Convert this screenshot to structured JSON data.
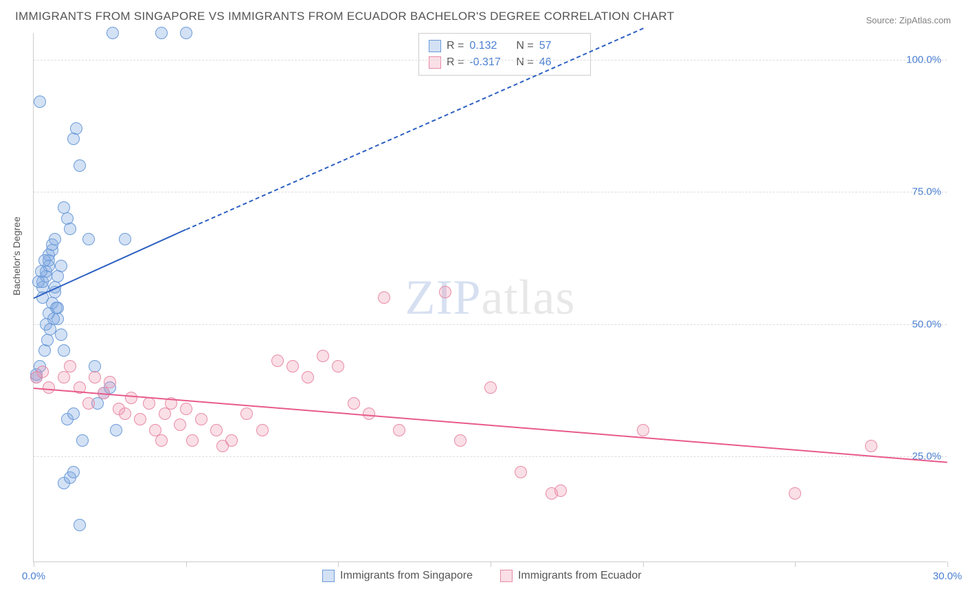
{
  "title": "IMMIGRANTS FROM SINGAPORE VS IMMIGRANTS FROM ECUADOR BACHELOR'S DEGREE CORRELATION CHART",
  "source": "Source: ZipAtlas.com",
  "watermark_zip": "ZIP",
  "watermark_atlas": "atlas",
  "ylabel": "Bachelor's Degree",
  "chart": {
    "type": "scatter",
    "xlim": [
      0,
      30
    ],
    "ylim": [
      5,
      105
    ],
    "x_tick_positions": [
      0,
      5,
      10,
      15,
      20,
      25,
      30
    ],
    "x_tick_labels": {
      "0": "0.0%",
      "30": "30.0%"
    },
    "y_tick_positions": [
      25,
      50,
      75,
      100
    ],
    "y_tick_labels": {
      "25": "25.0%",
      "50": "50.0%",
      "75": "75.0%",
      "100": "100.0%"
    },
    "plot_bg": "#ffffff",
    "grid_color": "#dddddd",
    "axis_color": "#cccccc",
    "marker_radius": 9,
    "marker_stroke_width": 1.5,
    "series": [
      {
        "name": "Immigrants from Singapore",
        "fill": "rgba(130,170,225,0.35)",
        "stroke": "#6b9bd8",
        "trend_color": "#2b5fc2",
        "R": "0.132",
        "N": "57",
        "trend": {
          "x1": 0,
          "y1": 55,
          "x2_solid": 5,
          "y2_solid": 68,
          "x2_dash": 20,
          "y2_dash": 106
        },
        "points": [
          [
            0.1,
            40
          ],
          [
            0.1,
            40.5
          ],
          [
            0.2,
            42
          ],
          [
            0.3,
            55
          ],
          [
            0.3,
            57
          ],
          [
            0.3,
            58
          ],
          [
            0.4,
            59
          ],
          [
            0.4,
            60
          ],
          [
            0.5,
            61
          ],
          [
            0.5,
            62
          ],
          [
            0.5,
            63
          ],
          [
            0.6,
            64
          ],
          [
            0.6,
            65
          ],
          [
            0.7,
            66
          ],
          [
            0.7,
            56
          ],
          [
            0.8,
            53
          ],
          [
            0.8,
            51
          ],
          [
            0.9,
            48
          ],
          [
            1.0,
            45
          ],
          [
            1.0,
            72
          ],
          [
            1.1,
            70
          ],
          [
            1.2,
            68
          ],
          [
            1.3,
            85
          ],
          [
            1.4,
            87
          ],
          [
            1.5,
            80
          ],
          [
            0.2,
            92
          ],
          [
            2.6,
            105
          ],
          [
            4.2,
            105
          ],
          [
            5.0,
            105
          ],
          [
            1.8,
            66
          ],
          [
            2.0,
            42
          ],
          [
            2.1,
            35
          ],
          [
            2.3,
            37
          ],
          [
            2.5,
            38
          ],
          [
            2.7,
            30
          ],
          [
            1.0,
            20
          ],
          [
            1.2,
            21
          ],
          [
            1.3,
            22
          ],
          [
            1.5,
            12
          ],
          [
            1.1,
            32
          ],
          [
            1.3,
            33
          ],
          [
            1.6,
            28
          ],
          [
            3.0,
            66
          ],
          [
            0.4,
            50
          ],
          [
            0.5,
            52
          ],
          [
            0.6,
            54
          ],
          [
            0.7,
            57
          ],
          [
            0.8,
            59
          ],
          [
            0.9,
            61
          ],
          [
            0.35,
            45
          ],
          [
            0.45,
            47
          ],
          [
            0.55,
            49
          ],
          [
            0.65,
            51
          ],
          [
            0.75,
            53
          ],
          [
            0.15,
            58
          ],
          [
            0.25,
            60
          ],
          [
            0.35,
            62
          ]
        ]
      },
      {
        "name": "Immigrants from Ecuador",
        "fill": "rgba(240,150,175,0.30)",
        "stroke": "#e88aa5",
        "trend_color": "#e85a8c",
        "R": "-0.317",
        "N": "46",
        "trend": {
          "x1": 0,
          "y1": 38,
          "x2_solid": 30,
          "y2_solid": 24,
          "x2_dash": 30,
          "y2_dash": 24
        },
        "points": [
          [
            0.1,
            40
          ],
          [
            0.3,
            41
          ],
          [
            0.5,
            38
          ],
          [
            1.0,
            40
          ],
          [
            1.2,
            42
          ],
          [
            1.5,
            38
          ],
          [
            1.8,
            35
          ],
          [
            2.0,
            40
          ],
          [
            2.3,
            37
          ],
          [
            2.5,
            39
          ],
          [
            2.8,
            34
          ],
          [
            3.0,
            33
          ],
          [
            3.2,
            36
          ],
          [
            3.5,
            32
          ],
          [
            3.8,
            35
          ],
          [
            4.0,
            30
          ],
          [
            4.3,
            33
          ],
          [
            4.5,
            35
          ],
          [
            4.8,
            31
          ],
          [
            5.0,
            34
          ],
          [
            5.5,
            32
          ],
          [
            6.0,
            30
          ],
          [
            6.5,
            28
          ],
          [
            7.0,
            33
          ],
          [
            7.5,
            30
          ],
          [
            8.0,
            43
          ],
          [
            8.5,
            42
          ],
          [
            9.0,
            40
          ],
          [
            9.5,
            44
          ],
          [
            10.0,
            42
          ],
          [
            10.5,
            35
          ],
          [
            11.0,
            33
          ],
          [
            11.5,
            55
          ],
          [
            12.0,
            30
          ],
          [
            13.5,
            56
          ],
          [
            14.0,
            28
          ],
          [
            15.0,
            38
          ],
          [
            16.0,
            22
          ],
          [
            17.0,
            18
          ],
          [
            17.3,
            18.5
          ],
          [
            20.0,
            30
          ],
          [
            25.0,
            18
          ],
          [
            27.5,
            27
          ],
          [
            6.2,
            27
          ],
          [
            5.2,
            28
          ],
          [
            4.2,
            28
          ]
        ]
      }
    ]
  },
  "stats_legend": {
    "r_label": "R =",
    "n_label": "N ="
  }
}
